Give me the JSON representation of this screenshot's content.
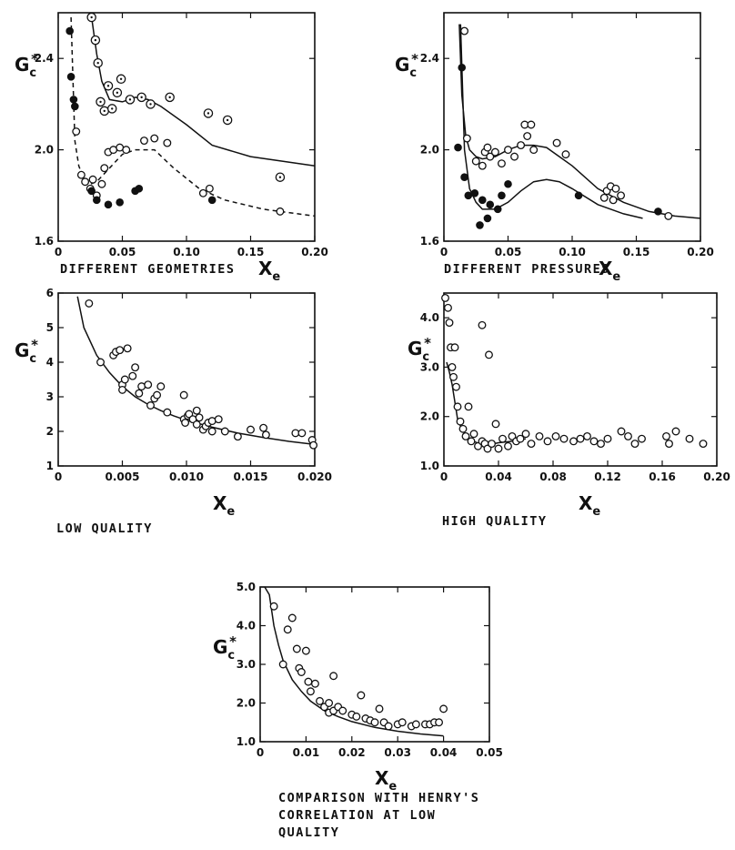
{
  "chart_data": [
    {
      "type": "scatter",
      "caption": "DIFFERENT GEOMETRIES",
      "ylabel": "Gc*",
      "xlabel": "Xe",
      "xlim": [
        0,
        0.2
      ],
      "ylim": [
        1.6,
        2.6
      ],
      "xticks": [
        0,
        0.05,
        0.1,
        0.15,
        0.2
      ],
      "xtick_labels": [
        "0",
        "0.05",
        "0.10",
        "0.15",
        "0.20"
      ],
      "yticks": [
        1.6,
        2.0,
        2.4
      ],
      "ytick_labels": [
        "1.6",
        "2.0",
        "2.4"
      ],
      "series": [
        {
          "marker": "dotted-circle",
          "x": [
            0.026,
            0.029,
            0.031,
            0.033,
            0.036,
            0.039,
            0.042,
            0.046,
            0.049,
            0.056,
            0.065,
            0.072,
            0.087,
            0.117,
            0.132,
            0.173
          ],
          "y": [
            2.58,
            2.48,
            2.38,
            2.21,
            2.17,
            2.28,
            2.18,
            2.25,
            2.31,
            2.22,
            2.23,
            2.2,
            2.23,
            2.16,
            2.13,
            1.88
          ]
        },
        {
          "marker": "open-circle",
          "x": [
            0.014,
            0.018,
            0.021,
            0.025,
            0.027,
            0.03,
            0.034,
            0.036,
            0.039,
            0.043,
            0.048,
            0.053,
            0.067,
            0.075,
            0.085,
            0.113,
            0.118,
            0.173
          ],
          "y": [
            2.08,
            1.89,
            1.86,
            1.83,
            1.87,
            1.8,
            1.85,
            1.92,
            1.99,
            2.0,
            2.01,
            2.0,
            2.04,
            2.05,
            2.03,
            1.81,
            1.83,
            1.73
          ]
        },
        {
          "marker": "filled-circle",
          "x": [
            0.009,
            0.01,
            0.012,
            0.013,
            0.026,
            0.03,
            0.039,
            0.048,
            0.06,
            0.063,
            0.12
          ],
          "y": [
            2.52,
            2.32,
            2.22,
            2.19,
            1.82,
            1.78,
            1.76,
            1.77,
            1.82,
            1.83,
            1.78
          ]
        }
      ],
      "curves": [
        {
          "style": "solid",
          "x": [
            0.026,
            0.03,
            0.034,
            0.04,
            0.05,
            0.06,
            0.07,
            0.08,
            0.1,
            0.12,
            0.15,
            0.2
          ],
          "y": [
            2.58,
            2.42,
            2.3,
            2.22,
            2.21,
            2.23,
            2.22,
            2.19,
            2.11,
            2.02,
            1.97,
            1.93
          ]
        },
        {
          "style": "dashed",
          "x": [
            0.01,
            0.013,
            0.016,
            0.02,
            0.025,
            0.03,
            0.04,
            0.05,
            0.06,
            0.075,
            0.09,
            0.11,
            0.13,
            0.16,
            0.2
          ],
          "y": [
            2.58,
            2.04,
            1.93,
            1.87,
            1.85,
            1.86,
            1.92,
            1.98,
            2.0,
            2.0,
            1.92,
            1.83,
            1.78,
            1.74,
            1.71
          ]
        }
      ]
    },
    {
      "type": "scatter",
      "caption": "DIFFERENT PRESSURES",
      "ylabel": "Gc*",
      "xlabel": "Xe",
      "xlim": [
        0,
        0.2
      ],
      "ylim": [
        1.6,
        2.6
      ],
      "xticks": [
        0,
        0.05,
        0.1,
        0.15,
        0.2
      ],
      "xtick_labels": [
        "0",
        "0.05",
        "0.10",
        "0.15",
        "0.20"
      ],
      "yticks": [
        1.6,
        2.0,
        2.4
      ],
      "ytick_labels": [
        "1.6",
        "2.0",
        "2.4"
      ],
      "series": [
        {
          "marker": "open-circle",
          "x": [
            0.016,
            0.018,
            0.025,
            0.03,
            0.032,
            0.034,
            0.036,
            0.04,
            0.045,
            0.05,
            0.055,
            0.06,
            0.063,
            0.065,
            0.068,
            0.07,
            0.088,
            0.095,
            0.125,
            0.127,
            0.13,
            0.132,
            0.134,
            0.138,
            0.175
          ],
          "y": [
            2.52,
            2.05,
            1.95,
            1.93,
            1.99,
            2.01,
            1.97,
            1.99,
            1.94,
            2.0,
            1.97,
            2.02,
            2.11,
            2.06,
            2.11,
            2.0,
            2.03,
            1.98,
            1.79,
            1.82,
            1.84,
            1.78,
            1.83,
            1.8,
            1.71
          ]
        },
        {
          "marker": "filled-circle",
          "x": [
            0.011,
            0.014,
            0.016,
            0.019,
            0.024,
            0.028,
            0.03,
            0.034,
            0.036,
            0.042,
            0.045,
            0.05,
            0.105,
            0.167
          ],
          "y": [
            2.01,
            2.36,
            1.88,
            1.8,
            1.81,
            1.67,
            1.78,
            1.7,
            1.76,
            1.74,
            1.8,
            1.85,
            1.8,
            1.73
          ]
        }
      ],
      "curves": [
        {
          "style": "solid",
          "x": [
            0.012,
            0.014,
            0.017,
            0.02,
            0.025,
            0.03,
            0.04,
            0.05,
            0.06,
            0.07,
            0.08,
            0.09,
            0.1,
            0.12,
            0.14,
            0.16,
            0.18,
            0.2
          ],
          "y": [
            2.55,
            2.24,
            2.06,
            2.0,
            1.97,
            1.96,
            1.97,
            2.0,
            2.02,
            2.02,
            2.01,
            1.97,
            1.93,
            1.83,
            1.77,
            1.73,
            1.71,
            1.7
          ]
        },
        {
          "style": "solid",
          "x": [
            0.013,
            0.016,
            0.02,
            0.025,
            0.03,
            0.04,
            0.05,
            0.06,
            0.07,
            0.08,
            0.09,
            0.1,
            0.12,
            0.14,
            0.155
          ],
          "y": [
            2.55,
            2.0,
            1.83,
            1.77,
            1.74,
            1.74,
            1.77,
            1.82,
            1.86,
            1.87,
            1.86,
            1.83,
            1.76,
            1.72,
            1.7
          ]
        }
      ]
    },
    {
      "type": "scatter",
      "caption": "LOW QUALITY",
      "ylabel": "Gc*",
      "xlabel": "Xe",
      "xlim": [
        0,
        0.02
      ],
      "ylim": [
        1,
        6
      ],
      "xticks": [
        0,
        0.005,
        0.01,
        0.015,
        0.02
      ],
      "xtick_labels": [
        "0",
        "0.005",
        "0.010",
        "0.015",
        "0.020"
      ],
      "yticks": [
        1,
        2,
        3,
        4,
        5,
        6
      ],
      "ytick_labels": [
        "1",
        "2",
        "3",
        "4",
        "5",
        "6"
      ],
      "series": [
        {
          "marker": "open-circle",
          "x": [
            0.0024,
            0.0033,
            0.0043,
            0.0045,
            0.0048,
            0.005,
            0.005,
            0.0052,
            0.0054,
            0.0058,
            0.006,
            0.0063,
            0.0065,
            0.007,
            0.0072,
            0.0075,
            0.0077,
            0.008,
            0.0085,
            0.0098,
            0.0098,
            0.0099,
            0.0101,
            0.0102,
            0.0105,
            0.0108,
            0.0108,
            0.011,
            0.0113,
            0.0115,
            0.0117,
            0.012,
            0.012,
            0.0125,
            0.013,
            0.014,
            0.015,
            0.016,
            0.0162,
            0.0185,
            0.019,
            0.0198,
            0.0199
          ],
          "y": [
            5.7,
            4.0,
            4.2,
            4.3,
            4.35,
            3.35,
            3.2,
            3.5,
            4.4,
            3.6,
            3.85,
            3.1,
            3.3,
            3.35,
            2.75,
            2.95,
            3.05,
            3.3,
            2.55,
            3.05,
            2.35,
            2.25,
            2.45,
            2.5,
            2.35,
            2.6,
            2.2,
            2.4,
            2.05,
            2.15,
            2.25,
            2.3,
            2.0,
            2.35,
            2.0,
            1.85,
            2.05,
            2.1,
            1.9,
            1.95,
            1.95,
            1.75,
            1.6
          ]
        }
      ],
      "curves": [
        {
          "style": "solid",
          "x": [
            0.0015,
            0.002,
            0.003,
            0.004,
            0.005,
            0.006,
            0.007,
            0.008,
            0.009,
            0.01,
            0.012,
            0.014,
            0.016,
            0.018,
            0.02
          ],
          "y": [
            5.9,
            5.0,
            4.2,
            3.7,
            3.3,
            3.0,
            2.78,
            2.6,
            2.45,
            2.32,
            2.12,
            1.95,
            1.82,
            1.71,
            1.62
          ]
        }
      ]
    },
    {
      "type": "scatter",
      "caption": "HIGH QUALITY",
      "ylabel": "Gc*",
      "xlabel": "Xe",
      "xlim": [
        0,
        0.2
      ],
      "ylim": [
        1.0,
        4.5
      ],
      "xticks": [
        0,
        0.04,
        0.08,
        0.12,
        0.16,
        0.2
      ],
      "xtick_labels": [
        "0",
        "0.04",
        "0.08",
        "0.12",
        "0.16",
        "0.20"
      ],
      "yticks": [
        1.0,
        2.0,
        3.0,
        4.0
      ],
      "ytick_labels": [
        "1.0",
        "2.0",
        "3.0",
        "4.0"
      ],
      "series": [
        {
          "marker": "open-circle",
          "x": [
            0.001,
            0.003,
            0.004,
            0.005,
            0.006,
            0.007,
            0.008,
            0.009,
            0.01,
            0.012,
            0.014,
            0.016,
            0.018,
            0.02,
            0.022,
            0.025,
            0.028,
            0.03,
            0.032,
            0.035,
            0.038,
            0.04,
            0.043,
            0.047,
            0.05,
            0.053,
            0.056,
            0.06,
            0.064,
            0.07,
            0.076,
            0.082,
            0.088,
            0.095,
            0.1,
            0.105,
            0.11,
            0.115,
            0.12,
            0.13,
            0.135,
            0.14,
            0.145,
            0.163,
            0.165,
            0.17,
            0.18,
            0.19,
            0.028,
            0.033
          ],
          "y": [
            4.4,
            4.2,
            3.9,
            3.4,
            3.0,
            2.8,
            3.4,
            2.6,
            2.2,
            1.9,
            1.75,
            1.6,
            2.2,
            1.5,
            1.65,
            1.4,
            1.5,
            1.45,
            1.35,
            1.45,
            1.85,
            1.35,
            1.55,
            1.4,
            1.6,
            1.5,
            1.55,
            1.65,
            1.45,
            1.6,
            1.5,
            1.6,
            1.55,
            1.5,
            1.55,
            1.6,
            1.5,
            1.45,
            1.55,
            1.7,
            1.6,
            1.45,
            1.55,
            1.6,
            1.45,
            1.7,
            1.55,
            1.45,
            3.85,
            3.25
          ]
        }
      ],
      "curves": [
        {
          "style": "solid",
          "x": [
            0.002,
            0.004,
            0.006,
            0.008,
            0.01,
            0.013,
            0.016,
            0.02,
            0.025,
            0.03,
            0.035,
            0.04,
            0.05,
            0.06
          ],
          "y": [
            3.1,
            2.9,
            2.65,
            2.3,
            1.95,
            1.75,
            1.62,
            1.52,
            1.46,
            1.43,
            1.44,
            1.47,
            1.5,
            1.55
          ]
        }
      ]
    },
    {
      "type": "scatter",
      "caption": "COMPARISON WITH HENRY'S CORRELATION AT LOW QUALITY",
      "caption_lines": [
        "COMPARISON WITH HENRY'S",
        "CORRELATION AT LOW",
        "QUALITY"
      ],
      "ylabel": "Gc*",
      "xlabel": "Xe",
      "xlim": [
        0,
        0.05
      ],
      "ylim": [
        1.0,
        5.0
      ],
      "xticks": [
        0,
        0.01,
        0.02,
        0.03,
        0.04,
        0.05
      ],
      "xtick_labels": [
        "0",
        "0.01",
        "0.02",
        "0.03",
        "0.04",
        "0.05"
      ],
      "yticks": [
        1.0,
        2.0,
        3.0,
        4.0,
        5.0
      ],
      "ytick_labels": [
        "1.0",
        "2.0",
        "3.0",
        "4.0",
        "5.0"
      ],
      "series": [
        {
          "marker": "open-circle",
          "x": [
            0.003,
            0.005,
            0.006,
            0.007,
            0.008,
            0.0085,
            0.009,
            0.01,
            0.0105,
            0.011,
            0.012,
            0.013,
            0.014,
            0.015,
            0.015,
            0.016,
            0.016,
            0.017,
            0.018,
            0.02,
            0.021,
            0.022,
            0.023,
            0.024,
            0.025,
            0.026,
            0.027,
            0.028,
            0.03,
            0.031,
            0.033,
            0.034,
            0.036,
            0.037,
            0.038,
            0.039,
            0.04
          ],
          "y": [
            4.5,
            3.0,
            3.9,
            4.2,
            3.4,
            2.9,
            2.8,
            3.35,
            2.55,
            2.3,
            2.5,
            2.05,
            1.9,
            2.0,
            1.75,
            2.7,
            1.8,
            1.9,
            1.8,
            1.7,
            1.65,
            2.2,
            1.6,
            1.55,
            1.5,
            1.85,
            1.5,
            1.4,
            1.45,
            1.5,
            1.4,
            1.45,
            1.45,
            1.45,
            1.5,
            1.5,
            1.85
          ]
        }
      ],
      "curves": [
        {
          "style": "solid",
          "x": [
            0.001,
            0.002,
            0.003,
            0.004,
            0.005,
            0.007,
            0.009,
            0.011,
            0.014,
            0.017,
            0.02,
            0.025,
            0.03,
            0.035,
            0.04
          ],
          "y": [
            5.0,
            4.8,
            4.0,
            3.5,
            3.1,
            2.6,
            2.3,
            2.05,
            1.8,
            1.65,
            1.52,
            1.37,
            1.27,
            1.2,
            1.15
          ]
        }
      ]
    }
  ]
}
